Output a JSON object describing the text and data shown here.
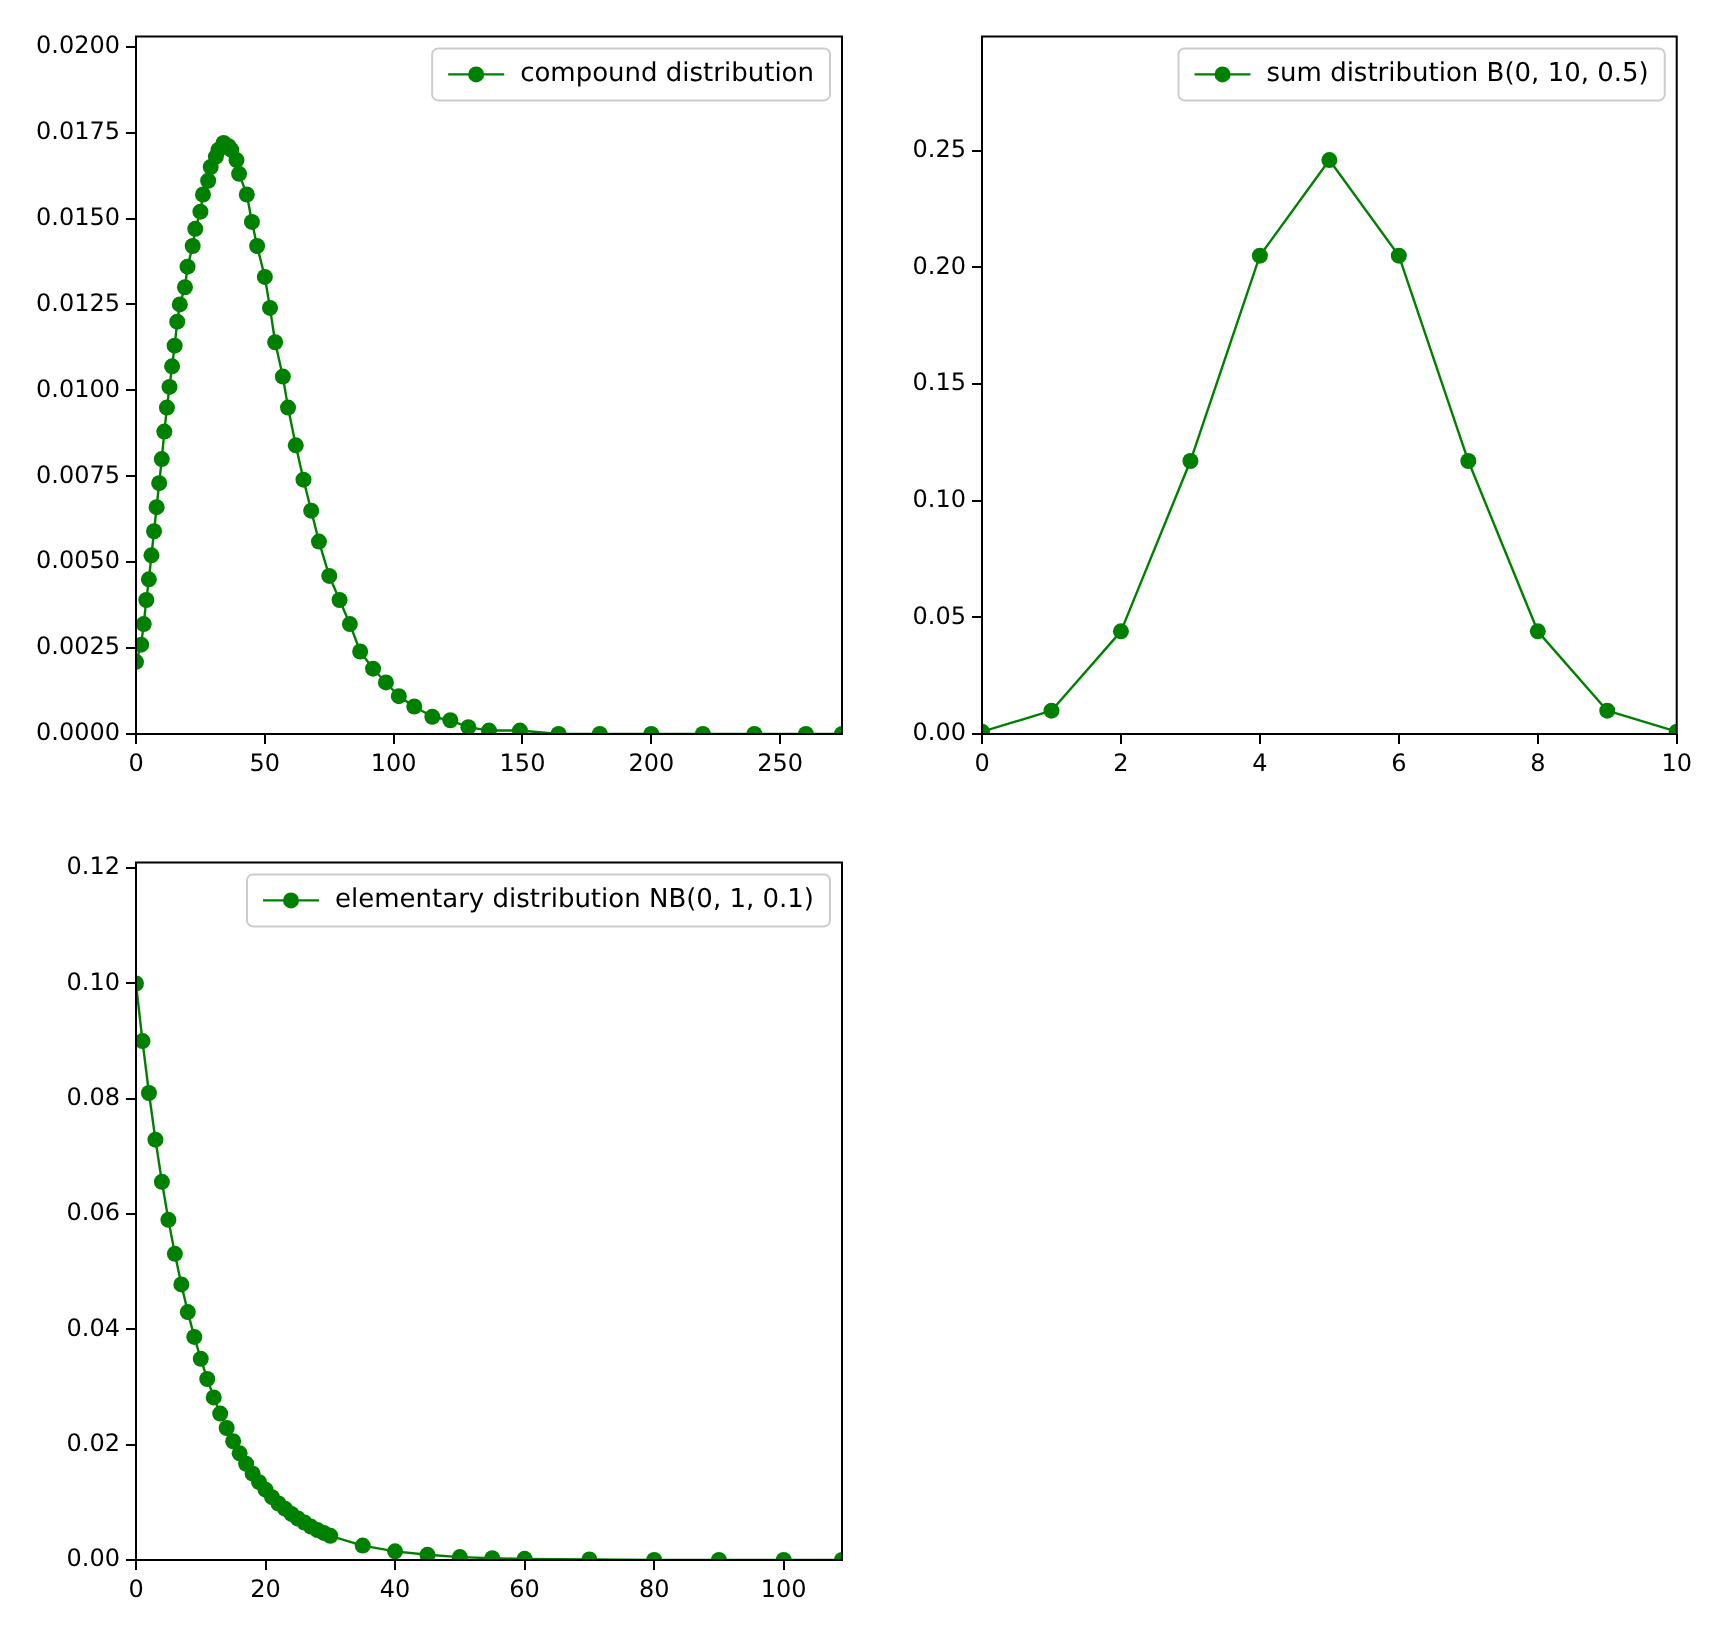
{
  "chart_data": [
    {
      "type": "line",
      "marker": "circle",
      "legend": "top right",
      "grid": false,
      "xlim": [
        0,
        274
      ],
      "ylim": [
        0,
        0.0203
      ],
      "xticks": [
        0,
        50,
        100,
        150,
        200,
        250
      ],
      "yticks": [
        {
          "value": 0,
          "label": "0.0000"
        },
        {
          "value": 0.0025,
          "label": "0.0025"
        },
        {
          "value": 0.005,
          "label": "0.0050"
        },
        {
          "value": 0.0075,
          "label": "0.0075"
        },
        {
          "value": 0.01,
          "label": "0.0100"
        },
        {
          "value": 0.0125,
          "label": "0.0125"
        },
        {
          "value": 0.015,
          "label": "0.0150"
        },
        {
          "value": 0.0175,
          "label": "0.0175"
        },
        {
          "value": 0.02,
          "label": "0.0200"
        }
      ],
      "x": [
        0,
        2,
        3,
        4,
        5,
        6,
        7,
        8,
        9,
        10,
        11,
        12,
        13,
        14,
        15,
        16,
        17,
        19,
        20,
        22,
        23,
        25,
        26,
        28,
        29,
        31,
        32,
        34,
        36,
        37,
        39,
        40,
        43,
        45,
        47,
        50,
        52,
        54,
        57,
        59,
        62,
        65,
        68,
        71,
        75,
        79,
        83,
        87,
        92,
        97,
        102,
        108,
        115,
        122,
        129,
        137,
        149,
        164,
        180,
        200,
        220,
        240,
        260,
        274
      ],
      "series": [
        {
          "name": "compound distribution",
          "color": "#008000",
          "values": [
            0.0021,
            0.0026,
            0.0032,
            0.0039,
            0.0045,
            0.0052,
            0.0059,
            0.0066,
            0.0073,
            0.008,
            0.0088,
            0.0095,
            0.0101,
            0.0107,
            0.0113,
            0.012,
            0.0125,
            0.013,
            0.0136,
            0.0142,
            0.0147,
            0.0152,
            0.0157,
            0.0161,
            0.0165,
            0.0168,
            0.017,
            0.0172,
            0.0171,
            0.017,
            0.0167,
            0.0163,
            0.0157,
            0.0149,
            0.0142,
            0.0133,
            0.0124,
            0.0114,
            0.0104,
            0.0095,
            0.0084,
            0.0074,
            0.0065,
            0.0056,
            0.0046,
            0.0039,
            0.0032,
            0.0024,
            0.0019,
            0.0015,
            0.0011,
            0.0008,
            0.0005,
            0.0004,
            0.0002,
            0.0001,
            0.0001,
            0,
            0,
            0,
            0,
            0,
            0,
            0
          ]
        }
      ]
    },
    {
      "type": "line",
      "marker": "circle",
      "legend": "top right",
      "grid": false,
      "xlim": [
        0,
        10
      ],
      "ylim": [
        0,
        0.299
      ],
      "xticks": [
        0,
        2,
        4,
        6,
        8,
        10
      ],
      "yticks": [
        {
          "value": 0,
          "label": "0.00"
        },
        {
          "value": 0.05,
          "label": "0.05"
        },
        {
          "value": 0.1,
          "label": "0.10"
        },
        {
          "value": 0.15,
          "label": "0.15"
        },
        {
          "value": 0.2,
          "label": "0.20"
        },
        {
          "value": 0.25,
          "label": "0.25"
        }
      ],
      "x": [
        0,
        1,
        2,
        3,
        4,
        5,
        6,
        7,
        8,
        9,
        10
      ],
      "series": [
        {
          "name": "sum distribution B(0, 10, 0.5)",
          "color": "#008000",
          "values": [
            0.001,
            0.01,
            0.044,
            0.117,
            0.205,
            0.246,
            0.205,
            0.117,
            0.044,
            0.01,
            0.001
          ]
        }
      ]
    },
    {
      "type": "line",
      "marker": "circle",
      "legend": "top right",
      "grid": false,
      "xlim": [
        0,
        109
      ],
      "ylim": [
        0,
        0.121
      ],
      "xticks": [
        0,
        20,
        40,
        60,
        80,
        100
      ],
      "yticks": [
        {
          "value": 0,
          "label": "0.00"
        },
        {
          "value": 0.02,
          "label": "0.02"
        },
        {
          "value": 0.04,
          "label": "0.04"
        },
        {
          "value": 0.06,
          "label": "0.06"
        },
        {
          "value": 0.08,
          "label": "0.08"
        },
        {
          "value": 0.1,
          "label": "0.10"
        },
        {
          "value": 0.12,
          "label": "0.12"
        }
      ],
      "x": [
        0,
        1,
        2,
        3,
        4,
        5,
        6,
        7,
        8,
        9,
        10,
        11,
        12,
        13,
        14,
        15,
        16,
        17,
        18,
        19,
        20,
        21,
        22,
        23,
        24,
        25,
        26,
        27,
        28,
        29,
        30,
        35,
        40,
        45,
        50,
        55,
        60,
        70,
        80,
        90,
        100,
        109
      ],
      "series": [
        {
          "name": "elementary distribution NB(0, 1, 0.1)",
          "color": "#008000",
          "values": [
            0.1,
            0.09,
            0.081,
            0.0729,
            0.0656,
            0.059,
            0.0531,
            0.0478,
            0.043,
            0.0387,
            0.0349,
            0.0314,
            0.0282,
            0.0254,
            0.0229,
            0.0206,
            0.0185,
            0.0167,
            0.015,
            0.0135,
            0.0122,
            0.0109,
            0.0098,
            0.0089,
            0.008,
            0.0072,
            0.0065,
            0.0058,
            0.0052,
            0.0047,
            0.0042,
            0.0025,
            0.0015,
            0.0009,
            0.0005,
            0.0003,
            0.0002,
            0.0001,
            0,
            0,
            0,
            0
          ]
        }
      ]
    }
  ]
}
